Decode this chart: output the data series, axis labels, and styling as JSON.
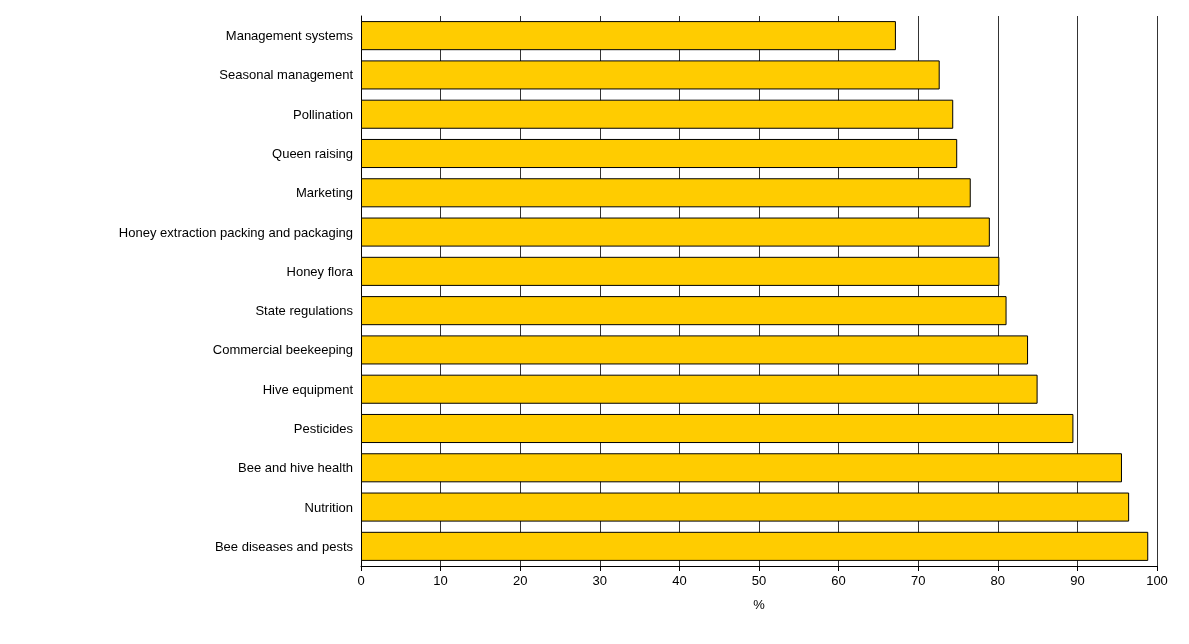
{
  "chart_data": {
    "type": "bar",
    "orientation": "horizontal",
    "xlabel": "%",
    "categories": [
      "Management systems",
      "Seasonal management",
      "Pollination",
      "Queen raising",
      "Marketing",
      "Honey extraction packing and packaging",
      "Honey flora",
      "State regulations",
      "Commercial beekeeping",
      "Hive equipment",
      "Pesticides",
      "Bee and hive health",
      "Nutrition",
      "Bee diseases and pests"
    ],
    "values": [
      67.2,
      72.7,
      74.4,
      74.9,
      76.6,
      79.0,
      80.2,
      81.1,
      83.8,
      85.0,
      89.5,
      95.6,
      96.5,
      98.9
    ],
    "color": "#ffcc00",
    "xlim": [
      0,
      100
    ],
    "xticks": [
      0,
      10,
      20,
      30,
      40,
      50,
      60,
      70,
      80,
      90,
      100
    ],
    "grid": "x"
  }
}
